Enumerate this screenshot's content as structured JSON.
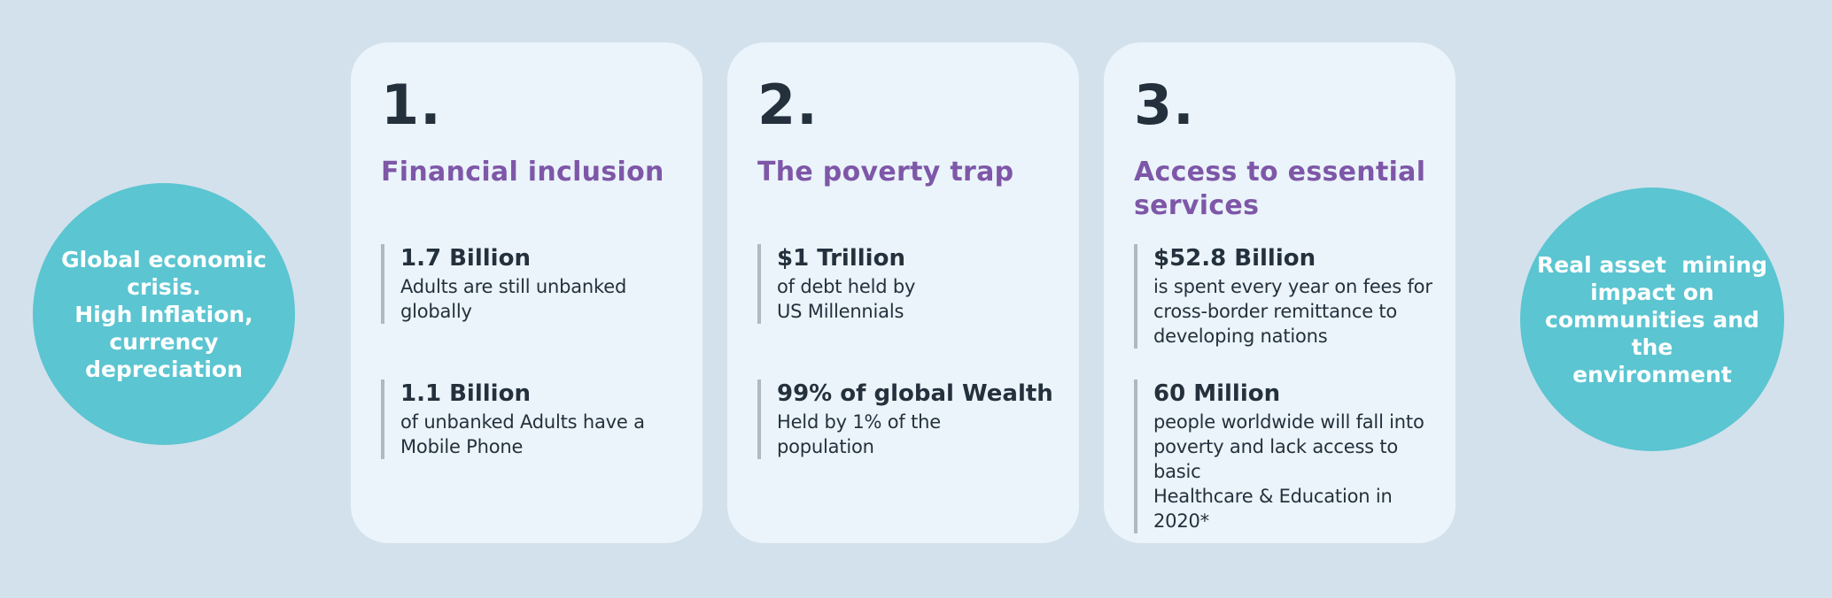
{
  "page": {
    "bg_color": "#d3e1ec",
    "card_bg_color": "#eaf4fa",
    "accent_teal": "#5bc5d1",
    "accent_purple": "#7e57a8",
    "text_dark": "#24313d",
    "stat_bar_color": "#aeb9c0"
  },
  "left_circle": {
    "text": "Global economic\ncrisis.\nHigh Inflation,\ncurrency\ndepreciation"
  },
  "right_circle": {
    "text": "Real asset  mining\nimpact on\ncommunities and the\nenvironment"
  },
  "cards": [
    {
      "number": "1.",
      "title": "Financial inclusion",
      "stats": [
        {
          "value": "1.7 Billion",
          "desc": "Adults are still unbanked\nglobally"
        },
        {
          "value": "1.1 Billion",
          "desc": "of unbanked Adults have a\nMobile Phone"
        }
      ]
    },
    {
      "number": "2.",
      "title": "The poverty trap",
      "stats": [
        {
          "value": "$1 Trillion",
          "desc": "of debt held by\nUS Millennials"
        },
        {
          "value": "99% of global Wealth",
          "desc": "Held by 1% of the\npopulation"
        }
      ]
    },
    {
      "number": "3.",
      "title": "Access to essential\nservices",
      "stats": [
        {
          "value": "$52.8 Billion",
          "desc": "is spent every year on fees for\ncross-border remittance to\ndeveloping nations"
        },
        {
          "value": "60 Million",
          "desc": "people worldwide will fall into\npoverty and lack access to basic\nHealthcare & Education in 2020*"
        }
      ]
    }
  ]
}
